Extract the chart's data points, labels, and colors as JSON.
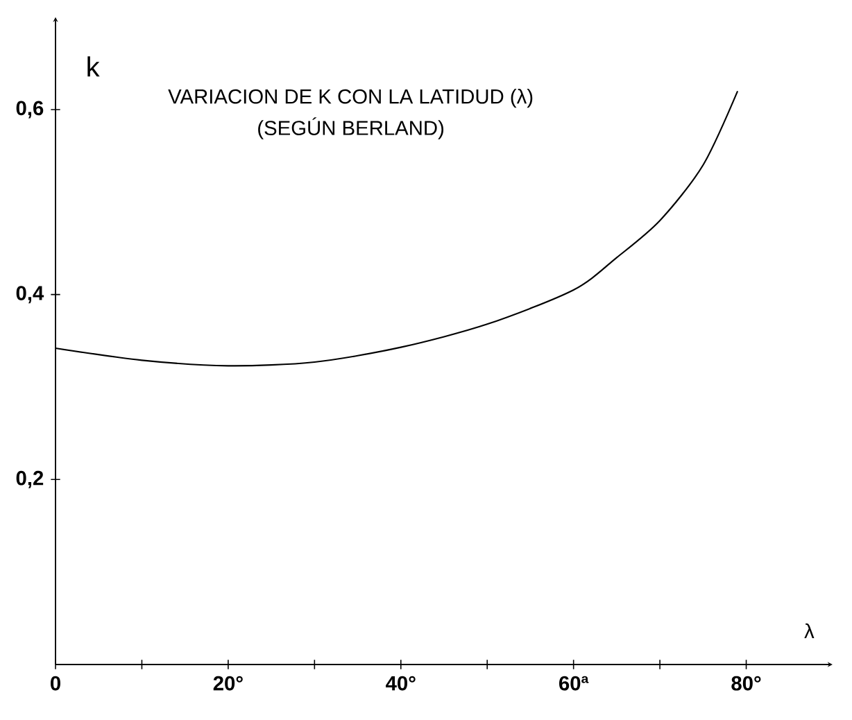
{
  "chart_data": {
    "type": "line",
    "title": "VARIACION DE K CON LA LATIDUD (λ)",
    "subtitle": "(SEGÚN BERLAND)",
    "xlabel": "λ",
    "ylabel": "k",
    "x": [
      0,
      10,
      20,
      30,
      40,
      50,
      60,
      65,
      70,
      75,
      79
    ],
    "series": [
      {
        "color": "#000000",
        "values": [
          0.342,
          0.329,
          0.323,
          0.327,
          0.343,
          0.368,
          0.405,
          0.44,
          0.48,
          0.54,
          0.62
        ]
      }
    ],
    "xlim": [
      0,
      90
    ],
    "ylim": [
      0,
      0.7
    ],
    "xticks": [
      {
        "value": 0,
        "label": "0"
      },
      {
        "value": 10,
        "label": null
      },
      {
        "value": 20,
        "label": "20°"
      },
      {
        "value": 30,
        "label": null
      },
      {
        "value": 40,
        "label": "40°"
      },
      {
        "value": 50,
        "label": null
      },
      {
        "value": 60,
        "label": "60ª"
      },
      {
        "value": 70,
        "label": null
      },
      {
        "value": 80,
        "label": "80°"
      }
    ],
    "yticks": [
      {
        "value": 0.2,
        "label": "0,2"
      },
      {
        "value": 0.4,
        "label": "0,4"
      },
      {
        "value": 0.6,
        "label": "0,6"
      }
    ]
  }
}
